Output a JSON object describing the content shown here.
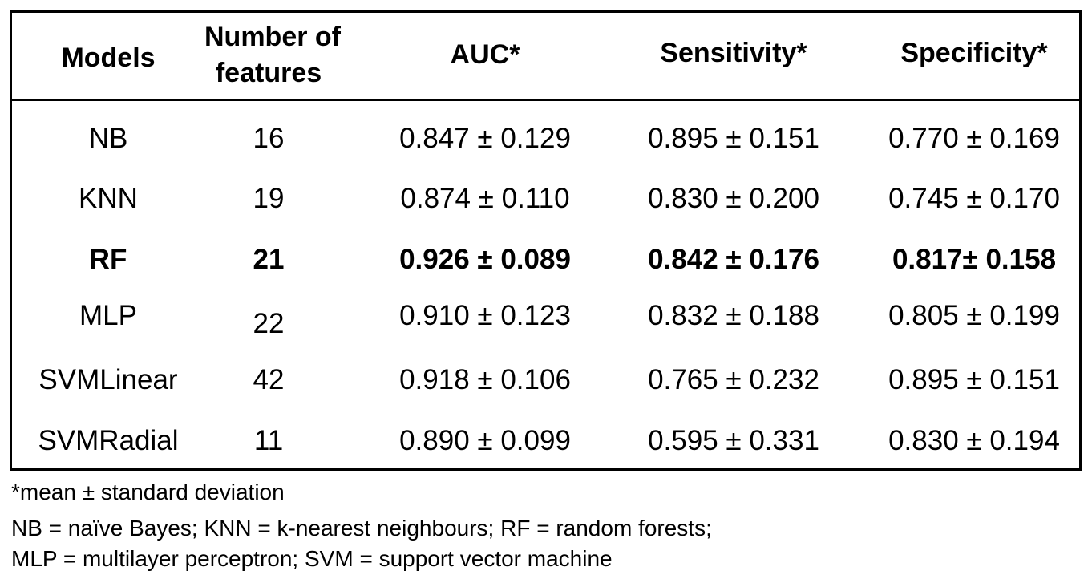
{
  "table": {
    "headers": {
      "models": "Models",
      "features_line1": "Number of",
      "features_line2": "features",
      "auc": "AUC*",
      "sensitivity": "Sensitivity*",
      "specificity": "Specificity*"
    },
    "rows": [
      {
        "model": "NB",
        "features": "16",
        "auc": "0.847 ± 0.129",
        "sensitivity": "0.895 ± 0.151",
        "specificity": "0.770 ± 0.169",
        "highlight": false
      },
      {
        "model": "KNN",
        "features": "19",
        "auc": "0.874 ± 0.110",
        "sensitivity": "0.830 ± 0.200",
        "specificity": "0.745 ± 0.170",
        "highlight": false
      },
      {
        "model": "RF",
        "features": "21",
        "auc": "0.926 ±  0.089",
        "sensitivity": "0.842 ± 0.176",
        "specificity": "0.817±  0.158",
        "highlight": true
      },
      {
        "model": "MLP",
        "features": "22",
        "auc": "0.910 ± 0.123",
        "sensitivity": "0.832 ± 0.188",
        "specificity": "0.805 ± 0.199",
        "highlight": false
      },
      {
        "model": "SVMLinear",
        "features": "42",
        "auc": "0.918 ± 0.106",
        "sensitivity": "0.765 ± 0.232",
        "specificity": "0.895 ± 0.151",
        "highlight": false
      },
      {
        "model": "SVMRadial",
        "features": "11",
        "auc": "0.890 ± 0.099",
        "sensitivity": "0.595 ± 0.331",
        "specificity": "0.830 ± 0.194",
        "highlight": false
      }
    ]
  },
  "footnotes": {
    "line1": "*mean ± standard deviation",
    "line2": "NB = naïve Bayes; KNN = k-nearest neighbours; RF = random forests;",
    "line3": "MLP = multilayer perceptron; SVM = support vector machine"
  }
}
